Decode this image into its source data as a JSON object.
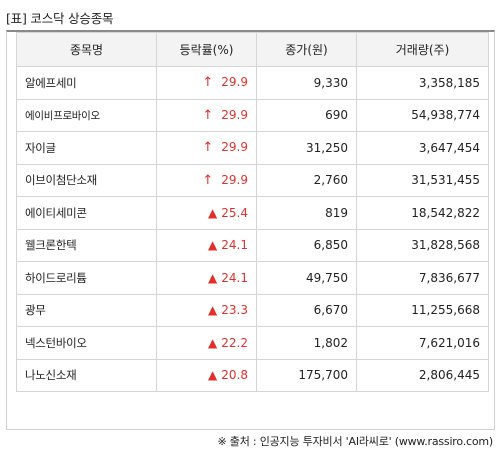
{
  "title": "[표] 코스닥 상승종목",
  "table": {
    "headers": [
      "종목명",
      "등락률(%)",
      "종가(원)",
      "거래량(주)"
    ],
    "rows": [
      {
        "name": "알에프세미",
        "marker": "↑",
        "rate": "29.9",
        "close": "9,330",
        "volume": "3,358,185"
      },
      {
        "name": "에이비프로바이오",
        "marker": "↑",
        "rate": "29.9",
        "close": "690",
        "volume": "54,938,774"
      },
      {
        "name": "자이글",
        "marker": "↑",
        "rate": "29.9",
        "close": "31,250",
        "volume": "3,647,454"
      },
      {
        "name": "이브이첨단소재",
        "marker": "↑",
        "rate": "29.9",
        "close": "2,760",
        "volume": "31,531,455"
      },
      {
        "name": "에이티세미콘",
        "marker": "▲",
        "rate": "25.4",
        "close": "819",
        "volume": "18,542,822"
      },
      {
        "name": "웰크론한텍",
        "marker": "▲",
        "rate": "24.1",
        "close": "6,850",
        "volume": "31,828,568"
      },
      {
        "name": "하이드로리튬",
        "marker": "▲",
        "rate": "24.1",
        "close": "49,750",
        "volume": "7,836,677"
      },
      {
        "name": "광무",
        "marker": "▲",
        "rate": "23.3",
        "close": "6,670",
        "volume": "11,255,668"
      },
      {
        "name": "넥스턴바이오",
        "marker": "▲",
        "rate": "22.2",
        "close": "1,802",
        "volume": "7,621,016"
      },
      {
        "name": "나노신소재",
        "marker": "▲",
        "rate": "20.8",
        "close": "175,700",
        "volume": "2,806,445"
      }
    ]
  },
  "footer": "※ 출처 : 인공지능 투자비서 'AI라씨로' (www.rassiro.com)",
  "colors": {
    "up": "#e0302a",
    "header_bg": "#f3f3f3",
    "border": "#d5d5d5"
  }
}
